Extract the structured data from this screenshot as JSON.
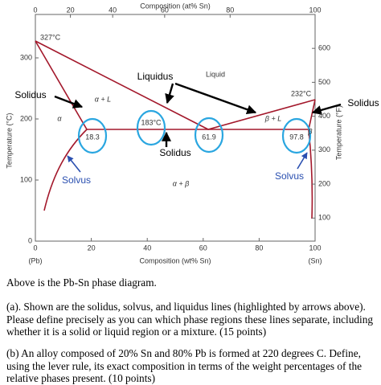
{
  "figure": {
    "top_axis": {
      "label": "Composition (at% Sn)",
      "ticks": [
        0,
        20,
        40,
        60,
        80,
        100
      ]
    },
    "bottom_axis": {
      "label": "Composition (wt% Sn)",
      "ticks": [
        0,
        20,
        40,
        60,
        80,
        100
      ],
      "left_end": "(Pb)",
      "right_end": "(Sn)"
    },
    "left_axis": {
      "label": "Temperature (°C)",
      "ticks": [
        0,
        100,
        200,
        300
      ]
    },
    "right_axis": {
      "label": "Temperature (°F)",
      "ticks": [
        100,
        200,
        300,
        400,
        500,
        600
      ]
    },
    "temperatures": {
      "pb_melt": "327°C",
      "sn_melt": "232°C",
      "eutectic": "183°C"
    },
    "compositions": {
      "alpha_max": "18.3",
      "eutectic": "61.9",
      "beta_min": "97.8"
    },
    "regions": {
      "liquid": "Liquid",
      "alpha": "α",
      "alpha_liquid": "α + L",
      "beta_liquid": "β + L",
      "beta": "β",
      "alpha_beta": "α + β"
    },
    "annotations": {
      "liquidus": "Liquidus",
      "solidus_left": "Solidus",
      "solidus_right": "Solidus",
      "solidus_bottom": "Solidus",
      "solvus_left": "Solvus",
      "solvus_right": "Solvus"
    }
  },
  "text": {
    "intro": "Above is the Pb-Sn phase diagram.",
    "part_a": "(a). Shown are the solidus, solvus, and liquidus lines (highlighted by arrows above). Please define precisely as you can which phase regions these lines separate, including whether it is a solid or liquid region or a mixture. (15 points)",
    "part_b": "(b) An alloy composed of 20% Sn and 80% Pb is formed at 220 degrees C. Define, using the lever rule, its exact composition in terms of the weight percentages of the relative phases present. (10 points)"
  }
}
